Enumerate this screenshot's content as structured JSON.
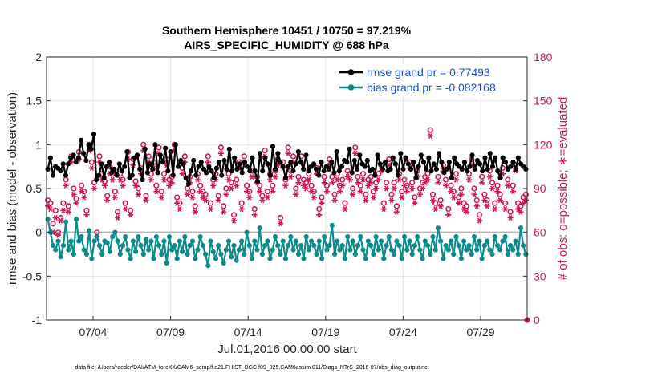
{
  "chart_data": {
    "type": "line",
    "title": "Southern Hemisphere 10451 / 10750 = 97.219%",
    "subtitle": "AIRS_SPECIFIC_HUMIDITY @ 688 hPa",
    "xlabel": "Jul.01,2016 00:00:00 start",
    "ylabel_left": "rmse and bias (model - observation)",
    "ylabel_right": "# of obs: o=possible; ∗=evaluated",
    "x_ticks": [
      {
        "day": 4,
        "label": "07/04"
      },
      {
        "day": 9,
        "label": "07/09"
      },
      {
        "day": 14,
        "label": "07/14"
      },
      {
        "day": 19,
        "label": "07/19"
      },
      {
        "day": 24,
        "label": "07/24"
      },
      {
        "day": 29,
        "label": "07/29"
      }
    ],
    "xlim": [
      1,
      32
    ],
    "ylim_left": [
      -1,
      2
    ],
    "left_ticks": [
      "-1",
      "-0.5",
      "0",
      "0.5",
      "1",
      "1.5",
      "2"
    ],
    "ylim_right": [
      0,
      180
    ],
    "right_ticks": [
      "0",
      "30",
      "60",
      "90",
      "120",
      "150",
      "180"
    ],
    "grid": true,
    "legend_position": "top-right",
    "colors": {
      "rmse": "#000000",
      "bias": "#0e8a8a",
      "obs": "#d11757",
      "zero": "#b3b3b3",
      "grid": "#e6e6e6",
      "legend_text": "#1a4fd6"
    },
    "series": [
      {
        "name": "rmse grand pr = 0.77493",
        "key": "rmse",
        "values": [
          0.72,
          0.85,
          0.65,
          0.75,
          0.73,
          0.7,
          0.78,
          0.65,
          0.78,
          0.85,
          0.88,
          0.8,
          0.85,
          1.05,
          0.9,
          0.82,
          1.0,
          0.95,
          1.12,
          0.6,
          0.65,
          0.78,
          0.62,
          0.75,
          0.8,
          0.68,
          0.72,
          0.65,
          0.78,
          0.7,
          0.75,
          0.92,
          0.62,
          0.65,
          0.85,
          0.88,
          0.72,
          0.6,
          0.95,
          0.68,
          0.78,
          0.72,
          1.0,
          0.68,
          0.88,
          0.8,
          0.96,
          0.7,
          0.92,
          0.65,
          1.0,
          0.75,
          0.82,
          0.78,
          0.62,
          0.55,
          0.7,
          0.82,
          0.65,
          0.75,
          0.8,
          0.72,
          0.68,
          0.75,
          0.7,
          0.62,
          0.73,
          0.8,
          0.65,
          0.82,
          0.72,
          0.95,
          0.7,
          0.85,
          0.72,
          0.78,
          0.68,
          0.8,
          0.75,
          0.7,
          0.85,
          0.7,
          0.58,
          0.9,
          0.7,
          0.85,
          0.78,
          0.65,
          0.98,
          0.72,
          0.9,
          0.8,
          0.75,
          0.62,
          0.75,
          0.8,
          0.7,
          0.78,
          0.92,
          0.8,
          0.72,
          0.88,
          0.7,
          0.75,
          0.78,
          0.72,
          0.65,
          0.8,
          0.7,
          0.75,
          0.72,
          0.8,
          0.68,
          0.92,
          0.7,
          0.75,
          0.82,
          0.8,
          0.95,
          0.68,
          0.82,
          0.72,
          0.88,
          0.78,
          0.75,
          0.82,
          0.7,
          0.72,
          0.65,
          0.88,
          0.78,
          0.72,
          0.8,
          0.7,
          0.72,
          0.85,
          0.78,
          0.65,
          0.9,
          0.72,
          0.85,
          0.78,
          0.72,
          0.8,
          0.62,
          0.75,
          0.88,
          0.8,
          0.72,
          0.85,
          0.7,
          0.78,
          0.72,
          0.9,
          0.8,
          0.68,
          0.72,
          0.8,
          0.62,
          0.85,
          0.78,
          0.75,
          0.72,
          0.8,
          0.7,
          0.75,
          0.88,
          0.72,
          0.82,
          0.78,
          0.7,
          0.85,
          0.72,
          0.9,
          0.75,
          0.85,
          0.7,
          0.62,
          0.85,
          0.8,
          0.72,
          0.75,
          0.8,
          0.72,
          0.85,
          0.78,
          0.75,
          0.72
        ]
      },
      {
        "name": "bias grand pr = -0.082168",
        "key": "bias",
        "values": [
          0.15,
          0.0,
          -0.15,
          -0.2,
          -0.1,
          -0.28,
          -0.15,
          0.12,
          -0.2,
          -0.1,
          -0.25,
          0.15,
          -0.1,
          -0.05,
          -0.2,
          -0.25,
          0.02,
          -0.3,
          -0.1,
          -0.05,
          -0.15,
          -0.25,
          -0.1,
          -0.12,
          -0.22,
          -0.05,
          0.0,
          -0.1,
          -0.25,
          -0.15,
          -0.05,
          -0.2,
          -0.3,
          -0.1,
          -0.22,
          -0.05,
          -0.15,
          -0.25,
          -0.08,
          -0.2,
          -0.1,
          -0.3,
          -0.05,
          -0.15,
          -0.25,
          -0.1,
          -0.35,
          -0.05,
          -0.2,
          -0.15,
          -0.3,
          -0.1,
          -0.22,
          -0.05,
          -0.25,
          -0.15,
          -0.1,
          -0.3,
          -0.2,
          -0.05,
          -0.15,
          -0.25,
          -0.38,
          -0.1,
          -0.22,
          -0.3,
          -0.15,
          -0.25,
          -0.35,
          -0.2,
          -0.1,
          -0.28,
          -0.15,
          -0.32,
          -0.2,
          -0.1,
          -0.25,
          0.0,
          -0.15,
          -0.3,
          -0.1,
          -0.2,
          0.05,
          -0.25,
          -0.15,
          -0.1,
          -0.3,
          -0.2,
          -0.05,
          -0.15,
          -0.25,
          -0.1,
          -0.3,
          -0.15,
          -0.05,
          -0.2,
          -0.1,
          -0.25,
          -0.15,
          -0.3,
          -0.05,
          -0.2,
          -0.1,
          -0.15,
          -0.25,
          -0.1,
          -0.3,
          -0.05,
          -0.2,
          -0.15,
          0.08,
          -0.25,
          -0.1,
          -0.2,
          -0.15,
          -0.3,
          -0.05,
          -0.2,
          -0.1,
          -0.25,
          -0.15,
          -0.05,
          -0.2,
          -0.3,
          -0.1,
          -0.15,
          -0.25,
          -0.05,
          -0.2,
          -0.1,
          -0.3,
          -0.15,
          -0.05,
          -0.2,
          -0.25,
          -0.1,
          -0.15,
          -0.3,
          -0.05,
          -0.2,
          -0.1,
          -0.25,
          -0.15,
          -0.05,
          -0.2,
          -0.3,
          -0.1,
          -0.15,
          -0.25,
          -0.05,
          -0.2,
          0.05,
          -0.1,
          -0.3,
          -0.15,
          -0.2,
          -0.1,
          -0.25,
          -0.05,
          -0.15,
          -0.3,
          -0.1,
          -0.2,
          -0.15,
          -0.25,
          -0.05,
          -0.2,
          -0.1,
          -0.3,
          -0.15,
          -0.1,
          -0.2,
          -0.25,
          -0.05,
          -0.15,
          -0.2,
          -0.1,
          -0.05,
          -0.25,
          -0.15,
          -0.2,
          -0.1,
          -0.25,
          0.05,
          -0.15,
          -0.25
        ]
      },
      {
        "name": "obs possible",
        "key": "possible",
        "marker": "o",
        "values": [
          82,
          80,
          66,
          75,
          60,
          70,
          80,
          96,
          78,
          112,
          90,
          83,
          115,
          92,
          88,
          75,
          120,
          108,
          94,
          60,
          112,
          100,
          95,
          85,
          105,
          100,
          88,
          74,
          100,
          96,
          80,
          115,
          75,
          110,
          95,
          90,
          104,
          120,
          85,
          112,
          100,
          108,
          92,
          118,
          88,
          100,
          110,
          96,
          98,
          120,
          84,
          80,
          104,
          112,
          90,
          98,
          88,
          78,
          100,
          92,
          88,
          86,
          112,
          80,
          96,
          100,
          85,
          118,
          78,
          90,
          100,
          94,
          72,
          96,
          108,
          80,
          112,
          92,
          88,
          102,
          76,
          98,
          92,
          85,
          116,
          88,
          100,
          92,
          102,
          110,
          70,
          108,
          96,
          118,
          102,
          112,
          90,
          98,
          112,
          96,
          94,
          100,
          92,
          88,
          104,
          76,
          84,
          98,
          92,
          110,
          98,
          86,
          100,
          92,
          96,
          80,
          102,
          100,
          90,
          118,
          98,
          92,
          100,
          86,
          96,
          98,
          88,
          94,
          100,
          106,
          80,
          94,
          110,
          86,
          94,
          78,
          100,
          88,
          96,
          92,
          108,
          94,
          84,
          102,
          90,
          94,
          98,
          100,
          130,
          86,
          80,
          98,
          82,
          106,
          96,
          76,
          92,
          88,
          100,
          84,
          90,
          80,
          78,
          100,
          110,
          90,
          82,
          72,
          98,
          86,
          82,
          102,
          94,
          80,
          92,
          86,
          104,
          80,
          96,
          74,
          92,
          106,
          80,
          78,
          84,
          86
        ]
      },
      {
        "name": "obs evaluated",
        "key": "evaluated",
        "marker": "*",
        "values": [
          78,
          76,
          60,
          70,
          58,
          68,
          75,
          92,
          74,
          108,
          86,
          80,
          110,
          88,
          84,
          72,
          116,
          104,
          90,
          57,
          108,
          96,
          92,
          82,
          100,
          96,
          84,
          70,
          96,
          92,
          76,
          110,
          72,
          106,
          92,
          86,
          100,
          116,
          82,
          108,
          96,
          104,
          88,
          114,
          84,
          96,
          106,
          92,
          94,
          116,
          80,
          76,
          100,
          108,
          86,
          94,
          84,
          74,
          96,
          88,
          84,
          82,
          108,
          76,
          92,
          96,
          82,
          114,
          74,
          86,
          96,
          90,
          68,
          92,
          104,
          76,
          108,
          88,
          84,
          98,
          72,
          94,
          88,
          82,
          112,
          84,
          96,
          88,
          98,
          106,
          66,
          104,
          92,
          114,
          98,
          108,
          86,
          94,
          108,
          92,
          90,
          96,
          88,
          84,
          100,
          72,
          80,
          94,
          88,
          106,
          94,
          82,
          96,
          88,
          92,
          76,
          98,
          96,
          86,
          114,
          94,
          88,
          96,
          82,
          92,
          94,
          84,
          90,
          96,
          102,
          76,
          90,
          106,
          82,
          90,
          74,
          96,
          84,
          92,
          88,
          104,
          90,
          80,
          98,
          86,
          90,
          94,
          96,
          126,
          82,
          76,
          94,
          78,
          102,
          92,
          72,
          88,
          84,
          96,
          80,
          86,
          76,
          74,
          96,
          106,
          86,
          78,
          68,
          94,
          82,
          78,
          98,
          90,
          76,
          88,
          82,
          100,
          76,
          92,
          70,
          88,
          102,
          76,
          74,
          80,
          82
        ]
      }
    ],
    "legend": [
      {
        "key": "rmse",
        "label": "rmse grand pr = 0.77493"
      },
      {
        "key": "bias",
        "label": "bias grand pr = -0.082168"
      }
    ],
    "right_axis_extra_marker_label": "0"
  },
  "footnote": "data file: /Users/raeder/DAI/ATM_forcXX/CAM6_setup/f.e21.FHIST_BGC.f09_025.CAM6assim.011/Diags_NTrS_2016-07/obs_diag_output.nc"
}
